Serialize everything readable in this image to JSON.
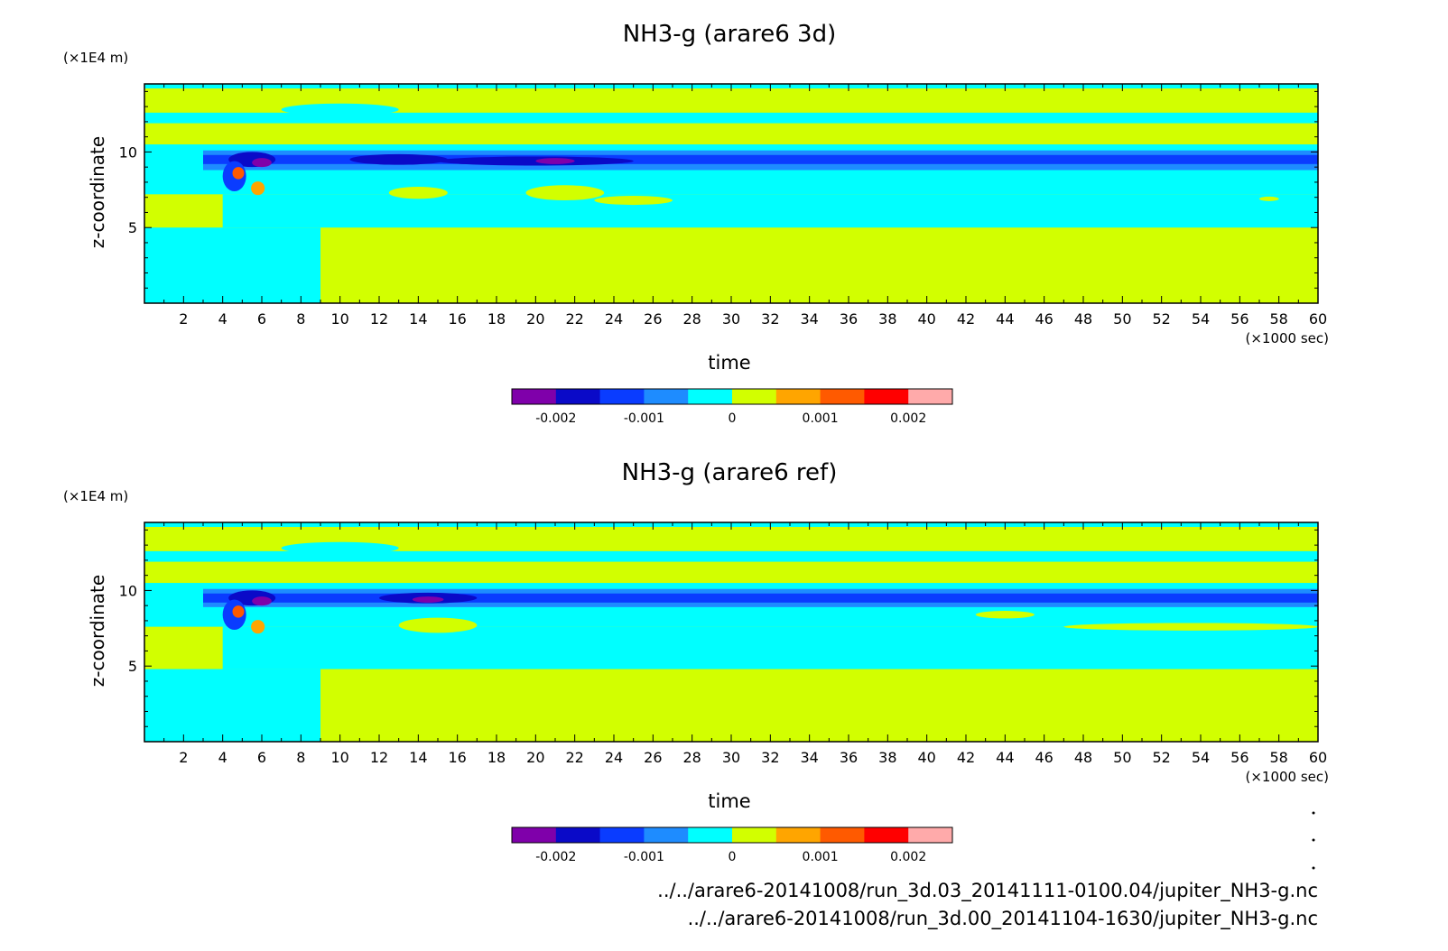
{
  "chart_data": [
    {
      "type": "heatmap",
      "title": "NH3-g (arare6 3d)",
      "xlabel": "time",
      "x_unit": "(×1000 sec)",
      "ylabel": "z-coordinate",
      "y_unit": "(×1E4 m)",
      "xlim": [
        0,
        60
      ],
      "ylim": [
        0,
        14.5
      ],
      "x_ticks": [
        "2",
        "4",
        "6",
        "8",
        "10",
        "12",
        "14",
        "16",
        "18",
        "20",
        "22",
        "24",
        "26",
        "28",
        "30",
        "32",
        "34",
        "36",
        "38",
        "40",
        "42",
        "44",
        "46",
        "48",
        "50",
        "52",
        "54",
        "56",
        "58",
        "60"
      ],
      "y_ticks": [
        "5",
        "10"
      ],
      "colorbar_ticks": [
        "-0.002",
        "-0.001",
        "0",
        "0.001",
        "0.002"
      ],
      "colorbar_levels": [
        -0.0025,
        -0.002,
        -0.0015,
        -0.001,
        -0.0005,
        0,
        0.0005,
        0.001,
        0.0015,
        0.002,
        0.0025
      ],
      "background_level": 0.0002,
      "bands": [
        {
          "t0": 0,
          "t1": 60,
          "z0": 7.2,
          "z1": 10.5,
          "value": -0.0003
        },
        {
          "t0": 0,
          "t1": 60,
          "z0": 11.9,
          "z1": 12.6,
          "value": -0.0003
        },
        {
          "t0": 0,
          "t1": 60,
          "z0": 14.2,
          "z1": 14.5,
          "value": -0.0003
        },
        {
          "t0": 4,
          "t1": 60,
          "z0": 5.0,
          "z1": 7.2,
          "value": -0.0003
        },
        {
          "t0": 3,
          "t1": 60,
          "z0": 8.8,
          "z1": 10.1,
          "value": -0.0008
        },
        {
          "t0": 3,
          "t1": 60,
          "z0": 9.2,
          "z1": 9.8,
          "value": -0.0013
        },
        {
          "t0": 0,
          "t1": 9,
          "z0": 0.0,
          "z1": 5.0,
          "value": -0.0003
        }
      ],
      "features": [
        {
          "t": 5.5,
          "z": 9.5,
          "rt": 1.2,
          "rz": 0.5,
          "value": -0.0018
        },
        {
          "t": 6.0,
          "z": 9.3,
          "rt": 0.5,
          "rz": 0.3,
          "value": -0.0022
        },
        {
          "t": 4.6,
          "z": 8.4,
          "rt": 0.6,
          "rz": 1.0,
          "value": -0.0013
        },
        {
          "t": 4.8,
          "z": 8.6,
          "rt": 0.3,
          "rz": 0.4,
          "value": 0.0013
        },
        {
          "t": 5.8,
          "z": 7.6,
          "rt": 0.35,
          "rz": 0.45,
          "value": 0.0008
        },
        {
          "t": 13.0,
          "z": 9.5,
          "rt": 2.5,
          "rz": 0.35,
          "value": -0.0018
        },
        {
          "t": 20.0,
          "z": 9.4,
          "rt": 5.0,
          "rz": 0.3,
          "value": -0.0018
        },
        {
          "t": 21.0,
          "z": 9.4,
          "rt": 1.0,
          "rz": 0.2,
          "value": -0.0022
        },
        {
          "t": 14.0,
          "z": 7.3,
          "rt": 1.5,
          "rz": 0.4,
          "value": 0.0002
        },
        {
          "t": 21.5,
          "z": 7.3,
          "rt": 2.0,
          "rz": 0.5,
          "value": 0.0002
        },
        {
          "t": 25.0,
          "z": 6.8,
          "rt": 2.0,
          "rz": 0.3,
          "value": 0.0002
        },
        {
          "t": 10.0,
          "z": 12.8,
          "rt": 3.0,
          "rz": 0.4,
          "value": -0.0003
        },
        {
          "t": 57.5,
          "z": 6.9,
          "rt": 0.5,
          "rz": 0.15,
          "value": 0.0002
        }
      ]
    },
    {
      "type": "heatmap",
      "title": "NH3-g (arare6 ref)",
      "xlabel": "time",
      "x_unit": "(×1000 sec)",
      "ylabel": "z-coordinate",
      "y_unit": "(×1E4 m)",
      "xlim": [
        0,
        60
      ],
      "ylim": [
        0,
        14.5
      ],
      "x_ticks": [
        "2",
        "4",
        "6",
        "8",
        "10",
        "12",
        "14",
        "16",
        "18",
        "20",
        "22",
        "24",
        "26",
        "28",
        "30",
        "32",
        "34",
        "36",
        "38",
        "40",
        "42",
        "44",
        "46",
        "48",
        "50",
        "52",
        "54",
        "56",
        "58",
        "60"
      ],
      "y_ticks": [
        "5",
        "10"
      ],
      "colorbar_ticks": [
        "-0.002",
        "-0.001",
        "0",
        "0.001",
        "0.002"
      ],
      "colorbar_levels": [
        -0.0025,
        -0.002,
        -0.0015,
        -0.001,
        -0.0005,
        0,
        0.0005,
        0.001,
        0.0015,
        0.002,
        0.0025
      ],
      "background_level": 0.0002,
      "bands": [
        {
          "t0": 0,
          "t1": 60,
          "z0": 7.6,
          "z1": 10.5,
          "value": -0.0003
        },
        {
          "t0": 0,
          "t1": 60,
          "z0": 11.9,
          "z1": 12.6,
          "value": -0.0003
        },
        {
          "t0": 0,
          "t1": 60,
          "z0": 14.2,
          "z1": 14.5,
          "value": -0.0003
        },
        {
          "t0": 4,
          "t1": 60,
          "z0": 4.8,
          "z1": 7.6,
          "value": -0.0003
        },
        {
          "t0": 3,
          "t1": 60,
          "z0": 8.9,
          "z1": 10.1,
          "value": -0.0008
        },
        {
          "t0": 3,
          "t1": 60,
          "z0": 9.2,
          "z1": 9.8,
          "value": -0.0013
        },
        {
          "t0": 0,
          "t1": 9,
          "z0": 0.0,
          "z1": 4.8,
          "value": -0.0003
        }
      ],
      "features": [
        {
          "t": 5.5,
          "z": 9.5,
          "rt": 1.2,
          "rz": 0.5,
          "value": -0.0018
        },
        {
          "t": 6.0,
          "z": 9.3,
          "rt": 0.5,
          "rz": 0.3,
          "value": -0.0022
        },
        {
          "t": 4.6,
          "z": 8.4,
          "rt": 0.6,
          "rz": 1.0,
          "value": -0.0013
        },
        {
          "t": 4.8,
          "z": 8.6,
          "rt": 0.3,
          "rz": 0.4,
          "value": 0.0013
        },
        {
          "t": 5.8,
          "z": 7.6,
          "rt": 0.35,
          "rz": 0.45,
          "value": 0.0008
        },
        {
          "t": 14.5,
          "z": 9.5,
          "rt": 2.5,
          "rz": 0.35,
          "value": -0.0018
        },
        {
          "t": 14.5,
          "z": 9.4,
          "rt": 0.8,
          "rz": 0.2,
          "value": -0.0022
        },
        {
          "t": 15.0,
          "z": 7.7,
          "rt": 2.0,
          "rz": 0.5,
          "value": 0.0002
        },
        {
          "t": 44.0,
          "z": 8.4,
          "rt": 1.5,
          "rz": 0.25,
          "value": 0.0002
        },
        {
          "t": 53.5,
          "z": 7.6,
          "rt": 6.5,
          "rz": 0.25,
          "value": 0.0002
        },
        {
          "t": 10.0,
          "z": 12.8,
          "rt": 3.0,
          "rz": 0.4,
          "value": -0.0003
        }
      ]
    }
  ],
  "footer": {
    "file_1": "../../arare6-20141008/run_3d.03_20141111-0100.04/jupiter_NH3-g.nc",
    "file_2": "../../arare6-20141008/run_3d.00_20141104-1630/jupiter_NH3-g.nc"
  },
  "colors": {
    "palette": [
      "#7f00aa",
      "#0a0ac8",
      "#0a3cff",
      "#1e8cff",
      "#00ffff",
      "#d2ff00",
      "#ffa500",
      "#ff5a00",
      "#ff0000",
      "#ffaaaa"
    ]
  }
}
